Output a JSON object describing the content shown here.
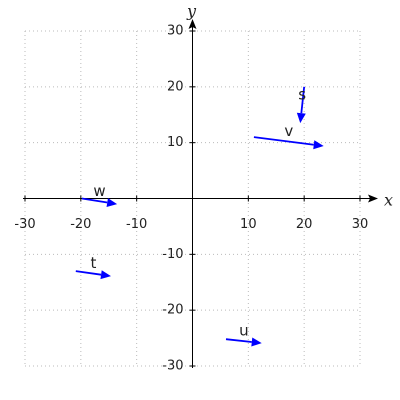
{
  "chart_data": {
    "type": "vector",
    "x_label": "x",
    "y_label": "y",
    "xlim": [
      -30,
      30
    ],
    "ylim": [
      -30,
      30
    ],
    "xticks": [
      -30,
      -20,
      -10,
      10,
      20,
      30
    ],
    "yticks": [
      -30,
      -20,
      -10,
      10,
      20,
      30
    ],
    "grid": true,
    "color": "blue",
    "label_color": "red",
    "vectors": [
      {
        "label": "s",
        "x": 20,
        "y": 20,
        "dx": -0.7,
        "dy": -6.5
      },
      {
        "label": "v",
        "x": 11,
        "y": 11,
        "dx": 12.5,
        "dy": -1.6
      },
      {
        "label": "w",
        "x": -19.8,
        "y": 0,
        "dx": 6.3,
        "dy": -1
      },
      {
        "label": "t",
        "x": -20.9,
        "y": -13,
        "dx": 6.3,
        "dy": -0.9
      },
      {
        "label": "u",
        "x": 6,
        "y": -25.2,
        "dx": 6.4,
        "dy": -0.7
      }
    ]
  }
}
